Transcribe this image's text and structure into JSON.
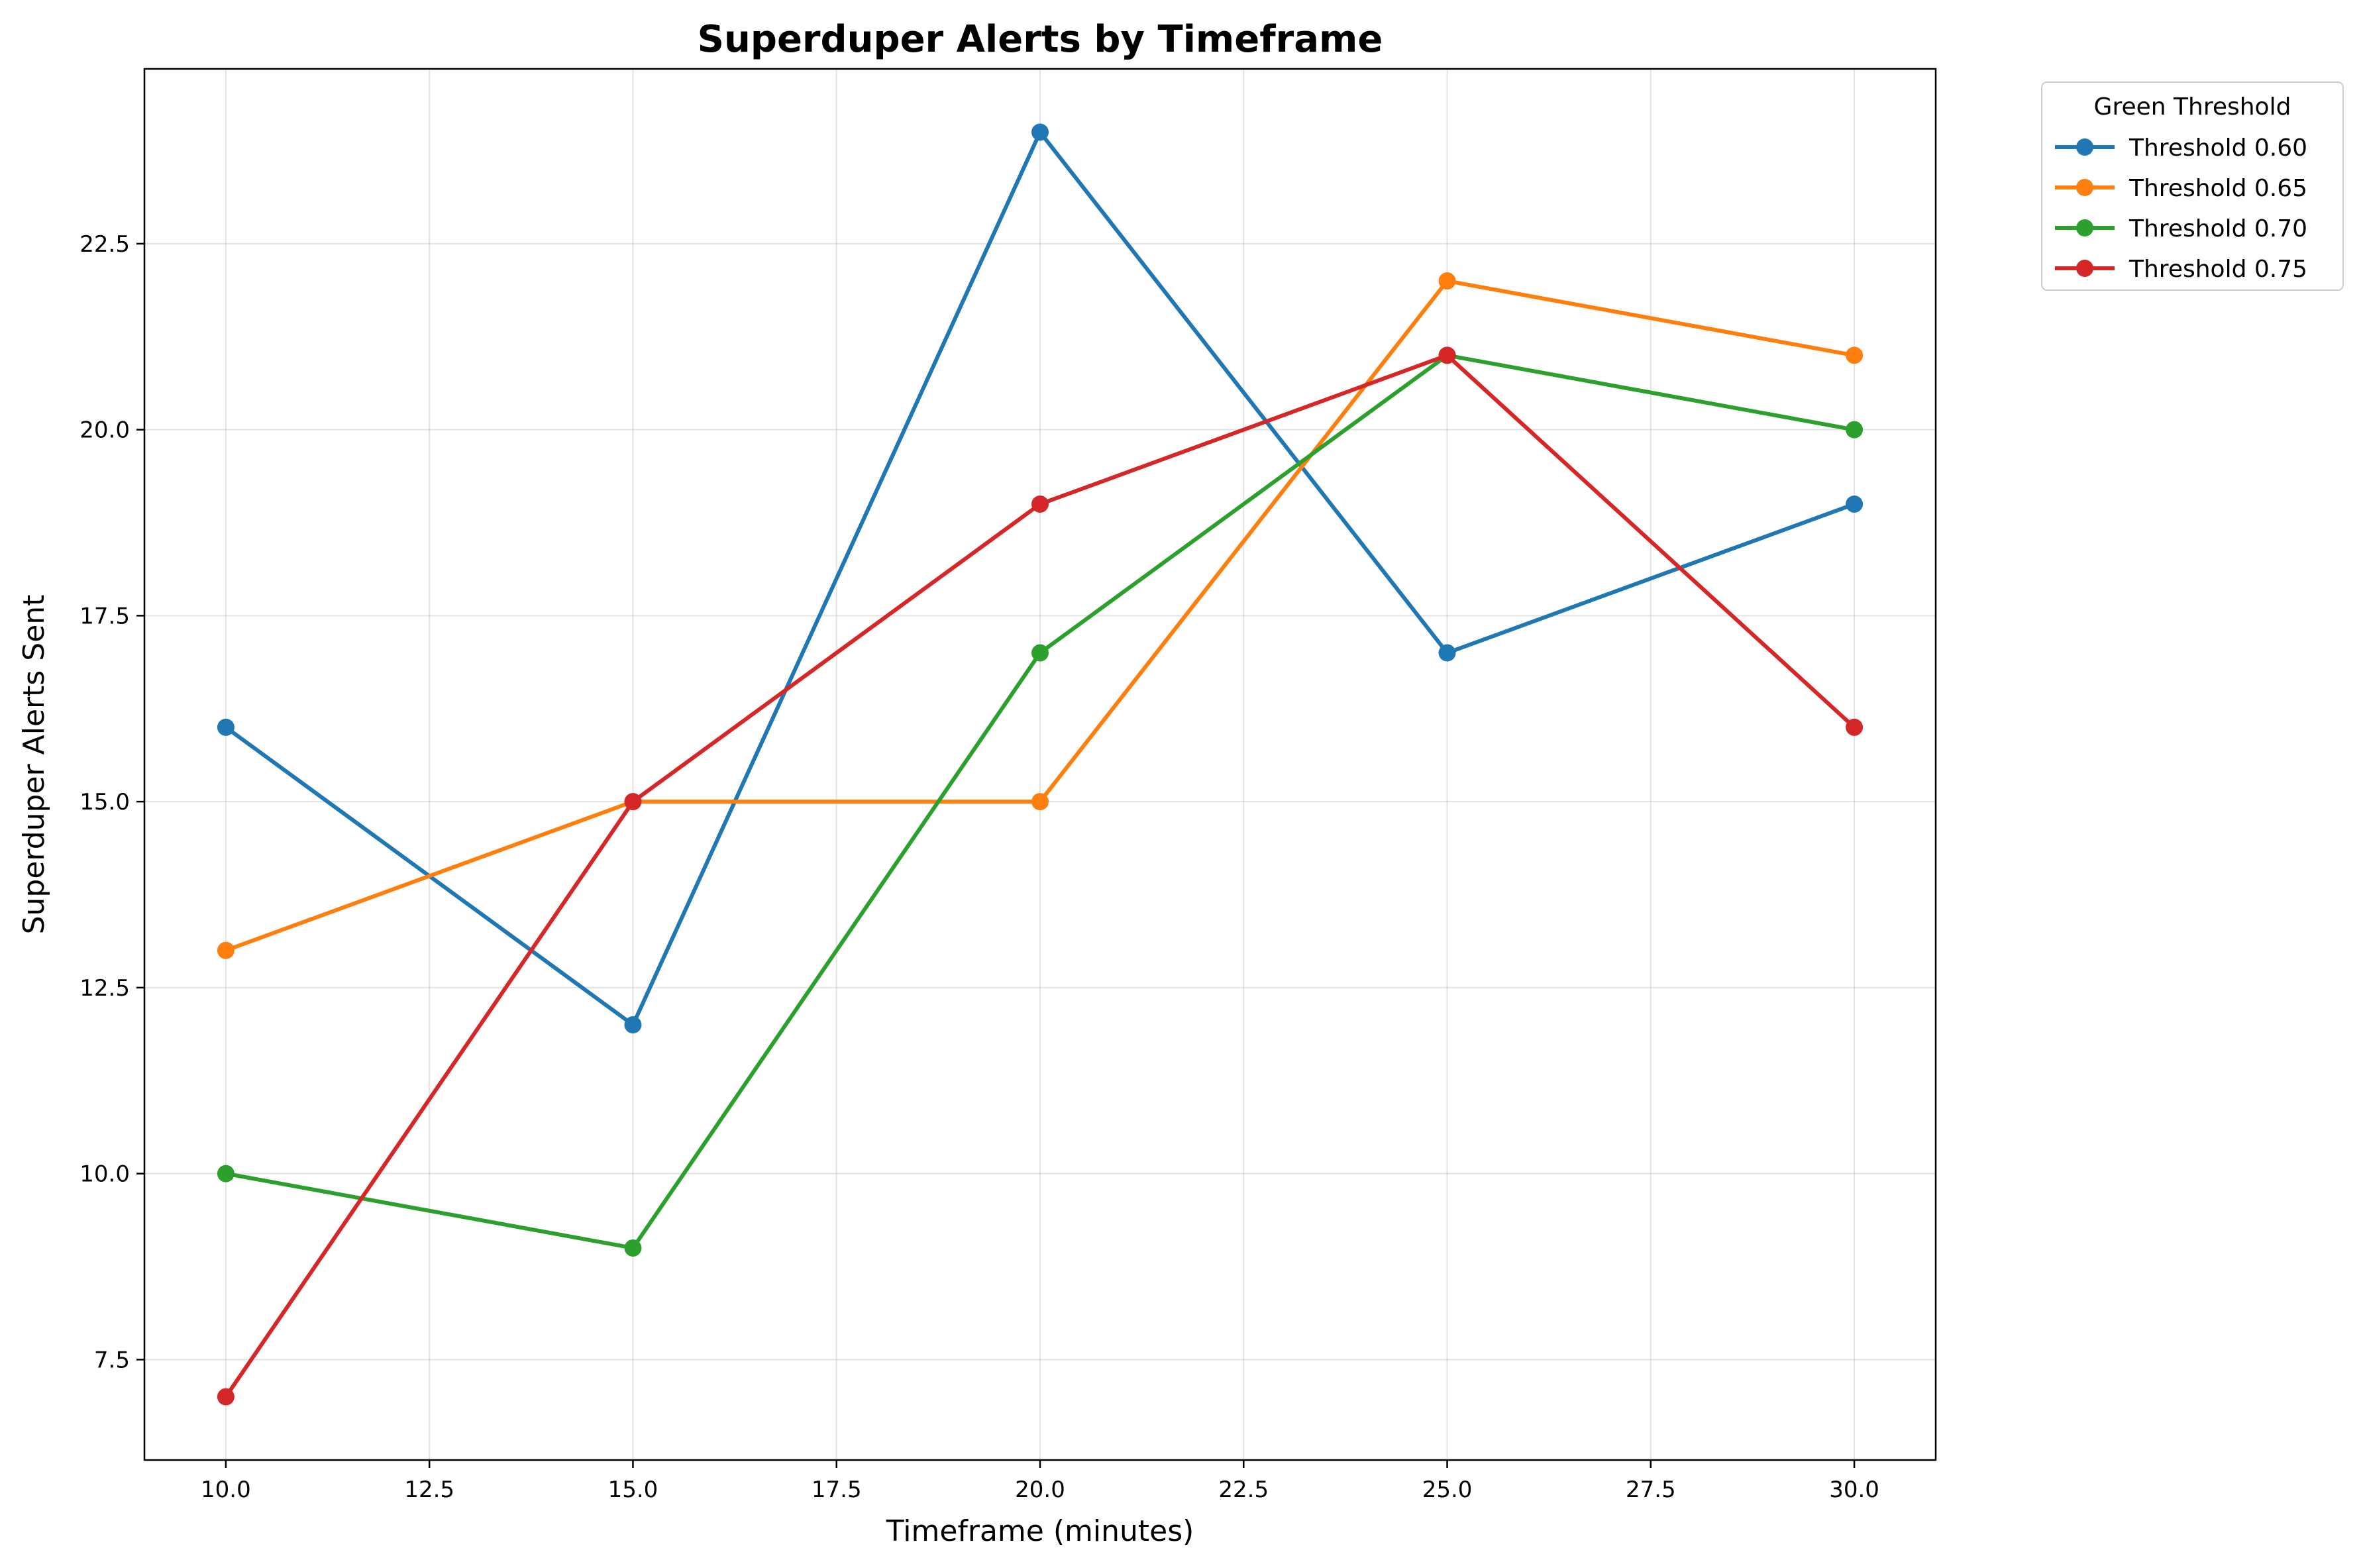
{
  "chart_data": {
    "type": "line",
    "title": "Superduper Alerts by Timeframe",
    "xlabel": "Timeframe (minutes)",
    "ylabel": "Superduper Alerts Sent",
    "x": [
      10,
      15,
      20,
      25,
      30
    ],
    "xlim": [
      9,
      31
    ],
    "ylim": [
      6.15,
      24.85
    ],
    "x_ticks": [
      "10.0",
      "12.5",
      "15.0",
      "17.5",
      "20.0",
      "22.5",
      "25.0",
      "27.5",
      "30.0"
    ],
    "y_ticks": [
      "7.5",
      "10.0",
      "12.5",
      "15.0",
      "17.5",
      "20.0",
      "22.5"
    ],
    "grid": true,
    "legend": {
      "title": "Green Threshold",
      "placement": "outside-top-right"
    },
    "series": [
      {
        "name": "Threshold 0.60",
        "color": "#1f77b4",
        "values": [
          16,
          12,
          24,
          17,
          19
        ]
      },
      {
        "name": "Threshold 0.65",
        "color": "#ff7f0e",
        "values": [
          13,
          15,
          15,
          22,
          21
        ]
      },
      {
        "name": "Threshold 0.70",
        "color": "#2ca02c",
        "values": [
          10,
          9,
          17,
          21,
          20
        ]
      },
      {
        "name": "Threshold 0.75",
        "color": "#d62728",
        "values": [
          7,
          15,
          19,
          21,
          16
        ]
      }
    ]
  }
}
